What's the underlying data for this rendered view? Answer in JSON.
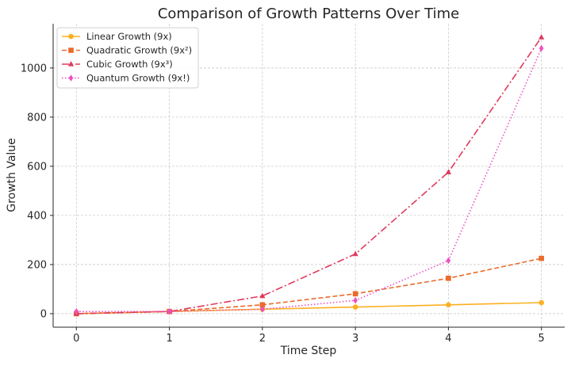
{
  "chart_data": {
    "type": "line",
    "title": "Comparison of Growth Patterns Over Time",
    "xlabel": "Time Step",
    "ylabel": "Growth Value",
    "x": [
      0,
      1,
      2,
      3,
      4,
      5
    ],
    "xlim": [
      -0.25,
      5.25
    ],
    "ylim": [
      -55,
      1180
    ],
    "xticks": [
      0,
      1,
      2,
      3,
      4,
      5
    ],
    "yticks": [
      0,
      200,
      400,
      600,
      800,
      1000
    ],
    "grid": true,
    "legend_position": "top-left",
    "series": [
      {
        "name": "Linear Growth (9x)",
        "values": [
          0,
          9,
          18,
          27,
          36,
          45
        ],
        "color": "#fbb020",
        "line_style": "solid",
        "marker": "circle"
      },
      {
        "name": "Quadratic Growth (9x²)",
        "values": [
          0,
          9,
          36,
          81,
          144,
          225
        ],
        "color": "#ea6b2c",
        "line_style": "dashed",
        "marker": "square"
      },
      {
        "name": "Cubic Growth (9x³)",
        "values": [
          0,
          9,
          72,
          243,
          576,
          1125
        ],
        "color": "#e03a5e",
        "line_style": "dashdot",
        "marker": "triangle"
      },
      {
        "name": "Quantum Growth (9x!)",
        "values": [
          9,
          9,
          18,
          54,
          216,
          1080
        ],
        "color": "#ec4fc5",
        "line_style": "dotted",
        "marker": "diamond"
      }
    ]
  }
}
